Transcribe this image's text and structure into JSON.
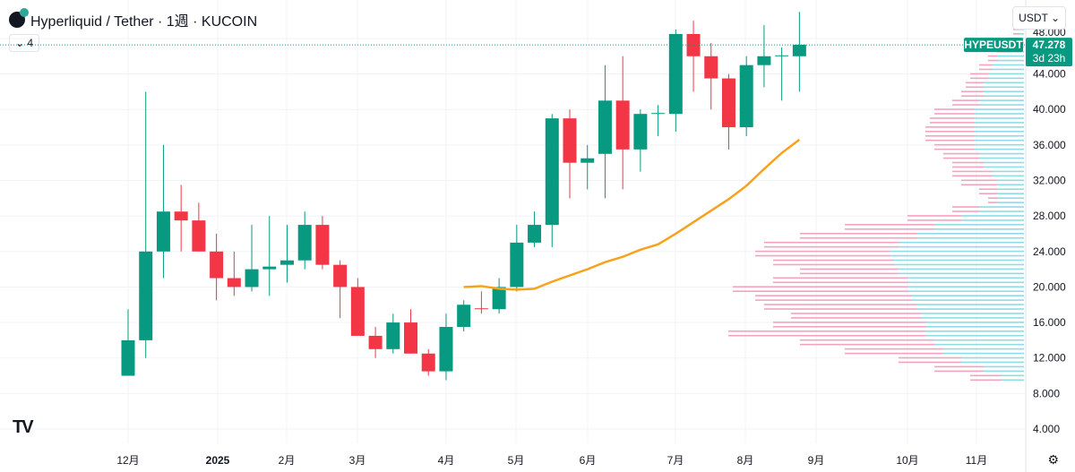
{
  "header": {
    "title": "Hyperliquid / Tether · 1週 · KUCOIN",
    "indicator_count": "4",
    "currency": "USDT ⌄"
  },
  "price_label": {
    "symbol": "HYPEUSDT",
    "price": "47.278",
    "countdown": "3d 23h"
  },
  "colors": {
    "up": "#089981",
    "down": "#f23645",
    "ma": "#f7a21b",
    "vp_up": "#8fdbe6",
    "vp_down": "#f4a3bf"
  },
  "chart_data": {
    "type": "candlestick",
    "ylim": [
      4,
      50
    ],
    "yticks": [
      "4.000",
      "8.000",
      "12.000",
      "16.000",
      "20.000",
      "24.000",
      "28.000",
      "32.000",
      "36.000",
      "40.000",
      "44.000",
      "48.000"
    ],
    "xticks": [
      "12月",
      "2025",
      "2月",
      "3月",
      "4月",
      "5月",
      "6月",
      "7月",
      "8月",
      "9月",
      "10月",
      "11月"
    ],
    "last_price": 47.278,
    "candles": [
      [
        10,
        14,
        17.5,
        10
      ],
      [
        14,
        24,
        42,
        12
      ],
      [
        24,
        28.5,
        36,
        21
      ],
      [
        28.5,
        27.5,
        31.5,
        24
      ],
      [
        27.5,
        24,
        29.5,
        24
      ],
      [
        24,
        21,
        26,
        18.5
      ],
      [
        21,
        20,
        24,
        19
      ],
      [
        20,
        22,
        27,
        19.5
      ],
      [
        22,
        22.3,
        28,
        19
      ],
      [
        22.5,
        23,
        27,
        20.5
      ],
      [
        23,
        27,
        28.5,
        22
      ],
      [
        27,
        22.5,
        28,
        22
      ],
      [
        22.5,
        20,
        23,
        16.5
      ],
      [
        20,
        14.5,
        21,
        14.5
      ],
      [
        14.5,
        13,
        15.5,
        12
      ],
      [
        13,
        16,
        17,
        12.5
      ],
      [
        16,
        12.5,
        17.5,
        12.5
      ],
      [
        12.5,
        10.5,
        13,
        10
      ],
      [
        10.5,
        15.5,
        17,
        9.5
      ],
      [
        15.5,
        18,
        18.5,
        15
      ],
      [
        17.6,
        17.5,
        19.5,
        17
      ],
      [
        17.5,
        20,
        21,
        17
      ],
      [
        20,
        25,
        27,
        19.5
      ],
      [
        25,
        27,
        28.5,
        24.5
      ],
      [
        27,
        39,
        39.5,
        24.5
      ],
      [
        39,
        34,
        40,
        30
      ],
      [
        34,
        34.5,
        36,
        31
      ],
      [
        35,
        41,
        45,
        30
      ],
      [
        41,
        35.5,
        46,
        31
      ],
      [
        35.5,
        39.5,
        40,
        33
      ],
      [
        39.5,
        39.6,
        40.5,
        37
      ],
      [
        39.5,
        48.5,
        49,
        37.5
      ],
      [
        48.5,
        46,
        50,
        42
      ],
      [
        46,
        43.5,
        47.5,
        40
      ],
      [
        43.5,
        38,
        44,
        35.5
      ],
      [
        38,
        45,
        46,
        37
      ],
      [
        45,
        46,
        49.5,
        42.5
      ],
      [
        46,
        46.1,
        47,
        41
      ],
      [
        46,
        47.3,
        51,
        42
      ]
    ],
    "ma": [
      [
        19,
        20
      ],
      [
        20,
        20.1
      ],
      [
        21,
        19.8
      ],
      [
        22,
        19.7
      ],
      [
        23,
        19.8
      ],
      [
        24,
        20.6
      ],
      [
        25,
        21.3
      ],
      [
        26,
        22
      ],
      [
        27,
        22.8
      ],
      [
        28,
        23.4
      ],
      [
        29,
        24.2
      ],
      [
        30,
        24.8
      ],
      [
        31,
        26
      ],
      [
        32,
        27.3
      ],
      [
        33,
        28.6
      ],
      [
        34,
        29.9
      ],
      [
        35,
        31.4
      ],
      [
        36,
        33.3
      ],
      [
        37,
        35.1
      ],
      [
        38,
        36.6
      ]
    ],
    "volume_profile": [
      [
        10,
        60,
        25
      ],
      [
        11,
        100,
        45
      ],
      [
        12,
        140,
        70
      ],
      [
        13,
        200,
        90
      ],
      [
        14,
        250,
        100
      ],
      [
        15,
        330,
        110
      ],
      [
        16,
        280,
        110
      ],
      [
        17,
        260,
        115
      ],
      [
        18,
        290,
        120
      ],
      [
        19,
        300,
        125
      ],
      [
        20,
        325,
        130
      ],
      [
        21,
        280,
        130
      ],
      [
        22,
        250,
        140
      ],
      [
        23,
        280,
        145
      ],
      [
        24,
        300,
        150
      ],
      [
        25,
        290,
        140
      ],
      [
        26,
        250,
        120
      ],
      [
        27,
        200,
        100
      ],
      [
        28,
        130,
        70
      ],
      [
        29,
        80,
        50
      ],
      [
        30,
        40,
        30
      ],
      [
        31,
        50,
        30
      ],
      [
        32,
        70,
        30
      ],
      [
        33,
        80,
        35
      ],
      [
        34,
        80,
        45
      ],
      [
        35,
        90,
        50
      ],
      [
        36,
        100,
        55
      ],
      [
        37,
        110,
        55
      ],
      [
        38,
        110,
        55
      ],
      [
        39,
        105,
        55
      ],
      [
        40,
        100,
        55
      ],
      [
        41,
        80,
        50
      ],
      [
        42,
        70,
        45
      ],
      [
        43,
        65,
        45
      ],
      [
        44,
        60,
        40
      ],
      [
        45,
        50,
        35
      ],
      [
        46,
        40,
        30
      ],
      [
        47,
        30,
        20
      ],
      [
        48,
        20,
        12
      ],
      [
        49,
        12,
        6
      ],
      [
        50,
        5,
        3
      ]
    ]
  }
}
